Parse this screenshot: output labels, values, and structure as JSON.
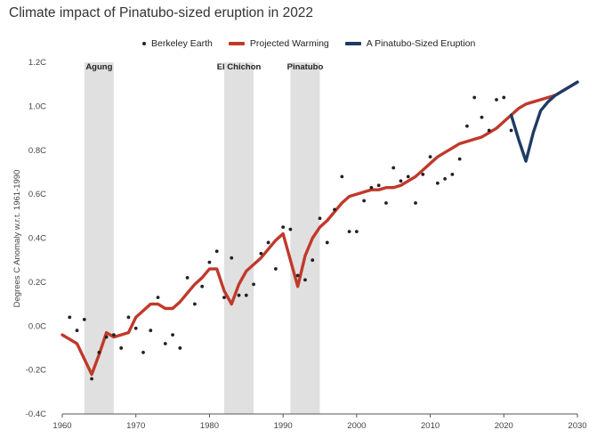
{
  "chart_data": {
    "type": "line",
    "title": "Climate impact of Pinatubo-sized eruption in 2022",
    "xlabel": "",
    "ylabel": "Degrees C Anomaly w.r.t. 1961-1990",
    "xlim": [
      1960,
      2030
    ],
    "ylim": [
      -0.4,
      1.2
    ],
    "x_ticks": [
      1960,
      1970,
      1980,
      1990,
      2000,
      2010,
      2020,
      2030
    ],
    "y_ticks": [
      -0.4,
      -0.2,
      0.0,
      0.2,
      0.4,
      0.6,
      0.8,
      1.0,
      1.2
    ],
    "y_tick_labels": [
      "-0.4C",
      "-0.2C",
      "0.0C",
      "0.2C",
      "0.4C",
      "0.6C",
      "0.8C",
      "1.0C",
      "1.2C"
    ],
    "grid": false,
    "legend": [
      {
        "label": "Berkeley Earth",
        "style": "dot",
        "color": "#222222"
      },
      {
        "label": "Projected Warming",
        "style": "line",
        "color": "#c0392b"
      },
      {
        "label": "A Pinatubo-Sized Eruption",
        "style": "line",
        "color": "#1f3b63"
      }
    ],
    "eruption_bands": [
      {
        "name": "Agung",
        "start": 1963,
        "end": 1967
      },
      {
        "name": "El Chichon",
        "start": 1982,
        "end": 1986
      },
      {
        "name": "Pinatubo",
        "start": 1991,
        "end": 1995
      }
    ],
    "series": [
      {
        "name": "Berkeley Earth",
        "type": "scatter",
        "color": "#222222",
        "points": [
          [
            1961,
            0.04
          ],
          [
            1962,
            -0.02
          ],
          [
            1963,
            0.03
          ],
          [
            1964,
            -0.24
          ],
          [
            1965,
            -0.12
          ],
          [
            1966,
            -0.05
          ],
          [
            1967,
            -0.04
          ],
          [
            1968,
            -0.1
          ],
          [
            1969,
            0.04
          ],
          [
            1970,
            -0.01
          ],
          [
            1971,
            -0.12
          ],
          [
            1972,
            -0.02
          ],
          [
            1973,
            0.13
          ],
          [
            1974,
            -0.08
          ],
          [
            1975,
            -0.04
          ],
          [
            1976,
            -0.1
          ],
          [
            1977,
            0.22
          ],
          [
            1978,
            0.1
          ],
          [
            1979,
            0.18
          ],
          [
            1980,
            0.29
          ],
          [
            1981,
            0.34
          ],
          [
            1982,
            0.13
          ],
          [
            1983,
            0.31
          ],
          [
            1984,
            0.14
          ],
          [
            1985,
            0.14
          ],
          [
            1986,
            0.19
          ],
          [
            1987,
            0.33
          ],
          [
            1988,
            0.38
          ],
          [
            1989,
            0.26
          ],
          [
            1990,
            0.45
          ],
          [
            1991,
            0.44
          ],
          [
            1992,
            0.23
          ],
          [
            1993,
            0.21
          ],
          [
            1994,
            0.3
          ],
          [
            1995,
            0.49
          ],
          [
            1996,
            0.38
          ],
          [
            1997,
            0.53
          ],
          [
            1998,
            0.68
          ],
          [
            1999,
            0.43
          ],
          [
            2000,
            0.43
          ],
          [
            2001,
            0.57
          ],
          [
            2002,
            0.63
          ],
          [
            2003,
            0.64
          ],
          [
            2004,
            0.56
          ],
          [
            2005,
            0.72
          ],
          [
            2006,
            0.66
          ],
          [
            2007,
            0.68
          ],
          [
            2008,
            0.56
          ],
          [
            2009,
            0.69
          ],
          [
            2010,
            0.77
          ],
          [
            2011,
            0.65
          ],
          [
            2012,
            0.67
          ],
          [
            2013,
            0.69
          ],
          [
            2014,
            0.76
          ],
          [
            2015,
            0.91
          ],
          [
            2016,
            1.04
          ],
          [
            2017,
            0.95
          ],
          [
            2018,
            0.89
          ],
          [
            2019,
            1.03
          ],
          [
            2020,
            1.04
          ],
          [
            2021,
            0.89
          ]
        ]
      },
      {
        "name": "Projected Warming",
        "type": "line",
        "color": "#c0392b",
        "points": [
          [
            1960,
            -0.04
          ],
          [
            1961,
            -0.06
          ],
          [
            1962,
            -0.08
          ],
          [
            1963,
            -0.15
          ],
          [
            1964,
            -0.22
          ],
          [
            1965,
            -0.13
          ],
          [
            1966,
            -0.03
          ],
          [
            1967,
            -0.05
          ],
          [
            1968,
            -0.04
          ],
          [
            1969,
            -0.03
          ],
          [
            1970,
            0.04
          ],
          [
            1971,
            0.07
          ],
          [
            1972,
            0.1
          ],
          [
            1973,
            0.1
          ],
          [
            1974,
            0.08
          ],
          [
            1975,
            0.08
          ],
          [
            1976,
            0.11
          ],
          [
            1977,
            0.15
          ],
          [
            1978,
            0.19
          ],
          [
            1979,
            0.22
          ],
          [
            1980,
            0.26
          ],
          [
            1981,
            0.26
          ],
          [
            1982,
            0.16
          ],
          [
            1983,
            0.1
          ],
          [
            1984,
            0.19
          ],
          [
            1985,
            0.25
          ],
          [
            1986,
            0.28
          ],
          [
            1987,
            0.31
          ],
          [
            1988,
            0.35
          ],
          [
            1989,
            0.39
          ],
          [
            1990,
            0.42
          ],
          [
            1991,
            0.3
          ],
          [
            1992,
            0.18
          ],
          [
            1993,
            0.32
          ],
          [
            1994,
            0.4
          ],
          [
            1995,
            0.45
          ],
          [
            1996,
            0.48
          ],
          [
            1997,
            0.52
          ],
          [
            1998,
            0.56
          ],
          [
            1999,
            0.59
          ],
          [
            2000,
            0.6
          ],
          [
            2001,
            0.61
          ],
          [
            2002,
            0.62
          ],
          [
            2003,
            0.62
          ],
          [
            2004,
            0.63
          ],
          [
            2005,
            0.63
          ],
          [
            2006,
            0.64
          ],
          [
            2007,
            0.66
          ],
          [
            2008,
            0.68
          ],
          [
            2009,
            0.71
          ],
          [
            2010,
            0.74
          ],
          [
            2011,
            0.77
          ],
          [
            2012,
            0.79
          ],
          [
            2013,
            0.81
          ],
          [
            2014,
            0.83
          ],
          [
            2015,
            0.84
          ],
          [
            2016,
            0.85
          ],
          [
            2017,
            0.86
          ],
          [
            2018,
            0.88
          ],
          [
            2019,
            0.9
          ],
          [
            2020,
            0.93
          ],
          [
            2021,
            0.96
          ],
          [
            2022,
            0.99
          ],
          [
            2023,
            1.01
          ],
          [
            2024,
            1.02
          ],
          [
            2025,
            1.03
          ],
          [
            2026,
            1.04
          ],
          [
            2027,
            1.05
          ],
          [
            2028,
            1.07
          ],
          [
            2029,
            1.09
          ],
          [
            2030,
            1.11
          ]
        ]
      },
      {
        "name": "A Pinatubo-Sized Eruption",
        "type": "line",
        "color": "#1f3b63",
        "points": [
          [
            2021,
            0.96
          ],
          [
            2022,
            0.85
          ],
          [
            2023,
            0.75
          ],
          [
            2024,
            0.88
          ],
          [
            2025,
            0.98
          ],
          [
            2026,
            1.02
          ],
          [
            2027,
            1.05
          ],
          [
            2028,
            1.07
          ],
          [
            2029,
            1.09
          ],
          [
            2030,
            1.11
          ]
        ]
      }
    ]
  }
}
